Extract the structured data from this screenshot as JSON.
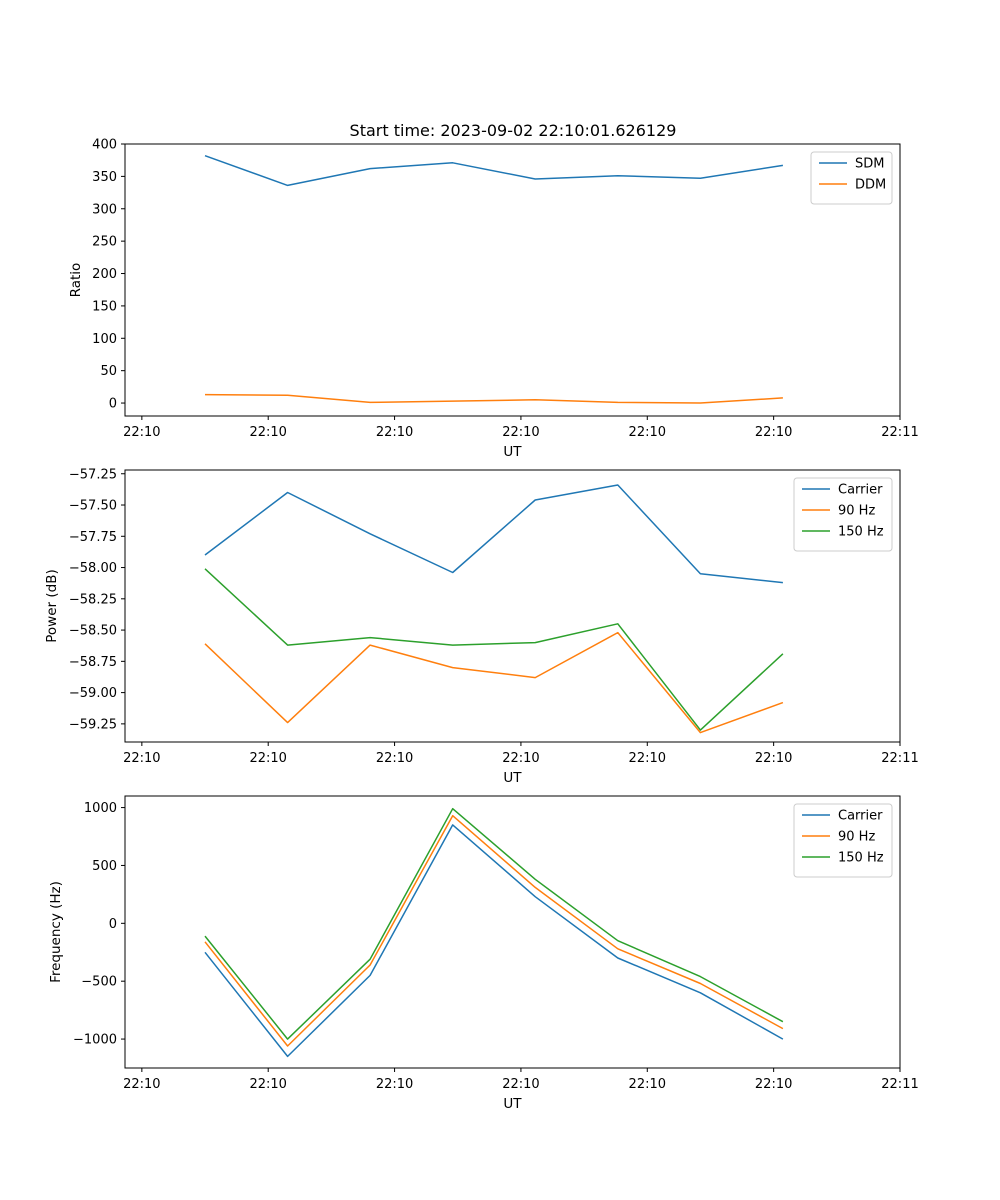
{
  "figure": {
    "title": "Start time: 2023-09-02 22:10:01.626129"
  },
  "chart_data": [
    {
      "type": "line",
      "name": "ratio-chart",
      "title": "Start time: 2023-09-02 22:10:01.626129",
      "xlabel": "UT",
      "ylabel": "Ratio",
      "xlim": [
        -0.2,
        9.0
      ],
      "ylim": [
        -20,
        400
      ],
      "x_ticks": [
        0,
        1.5,
        3,
        4.5,
        6,
        7.5,
        9
      ],
      "x_tick_labels": [
        "22:10",
        "22:10",
        "22:10",
        "22:10",
        "22:10",
        "22:10",
        "22:11"
      ],
      "y_ticks": [
        0,
        50,
        100,
        150,
        200,
        250,
        300,
        350,
        400
      ],
      "y_tick_labels": [
        "0",
        "50",
        "100",
        "150",
        "200",
        "250",
        "300",
        "350",
        "400"
      ],
      "legend_position": "top-right",
      "x": [
        0.75,
        1.73,
        2.71,
        3.69,
        4.67,
        5.65,
        6.63,
        7.61
      ],
      "series": [
        {
          "name": "SDM",
          "color": "#1f77b4",
          "values": [
            382,
            336,
            362,
            371,
            346,
            351,
            347,
            367
          ]
        },
        {
          "name": "DDM",
          "color": "#ff7f0e",
          "values": [
            13,
            12,
            1,
            3,
            5,
            1,
            0,
            8
          ]
        }
      ]
    },
    {
      "type": "line",
      "name": "power-chart",
      "title": "",
      "xlabel": "UT",
      "ylabel": "Power (dB)",
      "xlim": [
        -0.2,
        9.0
      ],
      "ylim": [
        -59.395,
        -57.22
      ],
      "x_ticks": [
        0,
        1.5,
        3,
        4.5,
        6,
        7.5,
        9
      ],
      "x_tick_labels": [
        "22:10",
        "22:10",
        "22:10",
        "22:10",
        "22:10",
        "22:10",
        "22:11"
      ],
      "y_ticks": [
        -57.25,
        -57.5,
        -57.75,
        -58.0,
        -58.25,
        -58.5,
        -58.75,
        -59.0,
        -59.25
      ],
      "y_tick_labels": [
        "−57.25",
        "−57.50",
        "−57.75",
        "−58.00",
        "−58.25",
        "−58.50",
        "−58.75",
        "−59.00",
        "−59.25"
      ],
      "legend_position": "top-right",
      "x": [
        0.75,
        1.73,
        2.71,
        3.69,
        4.67,
        5.65,
        6.63,
        7.61
      ],
      "series": [
        {
          "name": "Carrier",
          "color": "#1f77b4",
          "values": [
            -57.9,
            -57.4,
            -57.73,
            -58.04,
            -57.46,
            -57.34,
            -58.05,
            -58.12
          ]
        },
        {
          "name": "90 Hz",
          "color": "#ff7f0e",
          "values": [
            -58.61,
            -59.24,
            -58.62,
            -58.8,
            -58.88,
            -58.52,
            -59.32,
            -59.08
          ]
        },
        {
          "name": "150 Hz",
          "color": "#2ca02c",
          "values": [
            -58.01,
            -58.62,
            -58.56,
            -58.62,
            -58.6,
            -58.45,
            -59.3,
            -58.69
          ]
        }
      ]
    },
    {
      "type": "line",
      "name": "frequency-chart",
      "title": "",
      "xlabel": "UT",
      "ylabel": "Frequency (Hz)",
      "xlim": [
        -0.2,
        9.0
      ],
      "ylim": [
        -1250,
        1100
      ],
      "x_ticks": [
        0,
        1.5,
        3,
        4.5,
        6,
        7.5,
        9
      ],
      "x_tick_labels": [
        "22:10",
        "22:10",
        "22:10",
        "22:10",
        "22:10",
        "22:10",
        "22:11"
      ],
      "y_ticks": [
        1000,
        500,
        0,
        -500,
        -1000
      ],
      "y_tick_labels": [
        "1000",
        "500",
        "0",
        "−500",
        "−1000"
      ],
      "legend_position": "top-right",
      "x": [
        0.75,
        1.73,
        2.71,
        3.69,
        4.67,
        5.65,
        6.63,
        7.61
      ],
      "series": [
        {
          "name": "Carrier",
          "color": "#1f77b4",
          "values": [
            -250,
            -1150,
            -450,
            850,
            230,
            -300,
            -600,
            -1000
          ]
        },
        {
          "name": "90 Hz",
          "color": "#ff7f0e",
          "values": [
            -160,
            -1060,
            -360,
            930,
            310,
            -220,
            -520,
            -910
          ]
        },
        {
          "name": "150 Hz",
          "color": "#2ca02c",
          "values": [
            -110,
            -1000,
            -310,
            990,
            380,
            -150,
            -460,
            -850
          ]
        }
      ]
    }
  ]
}
